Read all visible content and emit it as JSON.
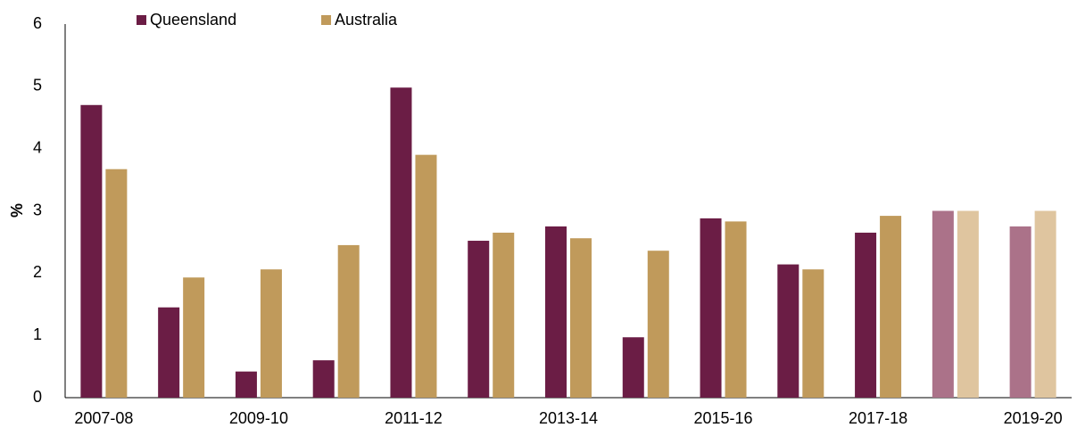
{
  "chart_data": {
    "type": "bar",
    "ylabel": "%",
    "categories": [
      "2007-08",
      null,
      "2009-10",
      null,
      "2011-12",
      null,
      "2013-14",
      null,
      "2015-16",
      null,
      "2017-18",
      null,
      "2019-20"
    ],
    "series": [
      {
        "name": "Queensland",
        "color": "#6b1d45",
        "colors": [
          "#6b1d45",
          "#6b1d45",
          "#6b1d45",
          "#6b1d45",
          "#6b1d45",
          "#6b1d45",
          "#6b1d45",
          "#6b1d45",
          "#6b1d45",
          "#6b1d45",
          "#6b1d45",
          "#ab7289",
          "#ab7289"
        ],
        "values": [
          4.7,
          1.45,
          0.42,
          0.6,
          4.98,
          2.52,
          2.75,
          0.97,
          2.88,
          2.14,
          2.65,
          3.0,
          2.75
        ]
      },
      {
        "name": "Australia",
        "color": "#c09a5b",
        "colors": [
          "#c09a5b",
          "#c09a5b",
          "#c09a5b",
          "#c09a5b",
          "#c09a5b",
          "#c09a5b",
          "#c09a5b",
          "#c09a5b",
          "#c09a5b",
          "#c09a5b",
          "#c09a5b",
          "#dfc59f",
          "#dfc59f"
        ],
        "values": [
          3.67,
          1.93,
          2.06,
          2.45,
          3.9,
          2.65,
          2.56,
          2.36,
          2.83,
          2.06,
          2.92,
          3.0,
          3.0
        ]
      }
    ],
    "ylim": [
      0,
      6
    ],
    "yticks": [
      0,
      1,
      2,
      3,
      4,
      5,
      6
    ],
    "grid": false,
    "legend": "top-left"
  }
}
